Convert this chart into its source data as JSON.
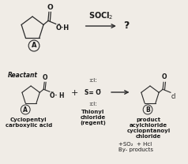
{
  "bg_color": "#f0ece6",
  "text_color": "#1a1a1a",
  "line_color": "#2a2a2a",
  "top_section": {
    "circle_A_label": "A",
    "reagent": "SOCl$_2$",
    "question_mark": "?"
  },
  "bottom_section": {
    "reactant_label": "Reactant",
    "circle_A_label": "A",
    "circle_B_label": "B",
    "name_A_line1": "Cyclopentyl",
    "name_A_line2": "carboxylic acid",
    "name_mid_line1": "Thionyl",
    "name_mid_line2": "chloride",
    "name_mid_line3": "(regent)",
    "name_B_line1": "product",
    "name_B_line2": "acylchloride",
    "name_B_line3": "cyclopntanoyl",
    "name_B_line4": "chloride",
    "byproduct_line1": "+SO₂  + Hcl",
    "byproduct_line2": "By- products",
    "cl_top": ":cl:",
    "s_eq_o": "S= Ö",
    "cl_bot": ":cl:",
    "plus": "+"
  }
}
